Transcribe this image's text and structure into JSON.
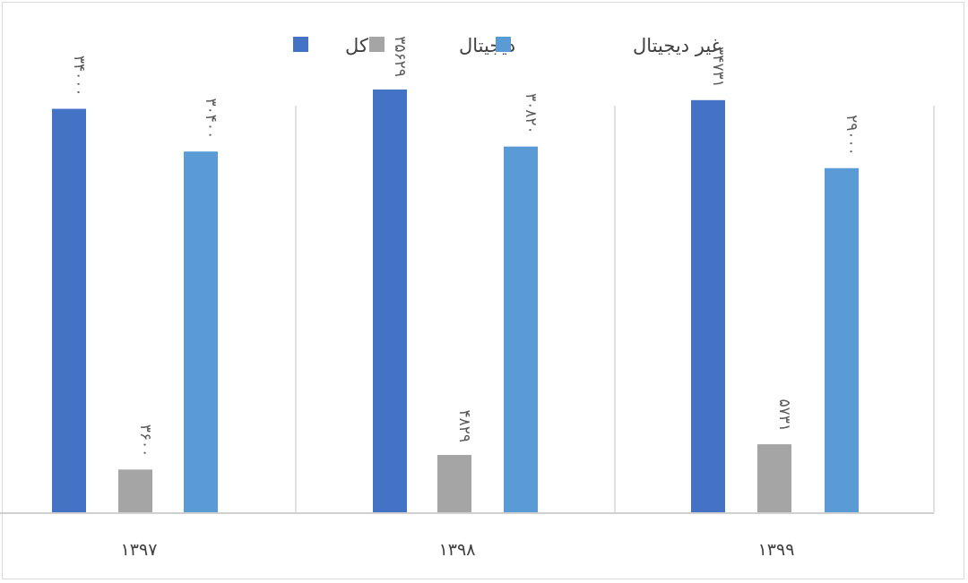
{
  "chart_data": {
    "type": "bar",
    "title": "",
    "xlabel": "",
    "ylabel": "",
    "categories": [
      "۱۳۹۷",
      "۱۳۹۸",
      "۱۳۹۹"
    ],
    "series": [
      {
        "name": "کل",
        "values": [
          34000,
          35629,
          34731
        ],
        "labels": [
          "۳۴۰۰۰",
          "۳۵۶۲۹",
          "۳۴۷۳۱"
        ],
        "color": "#4472c4"
      },
      {
        "name": "دیجیتال",
        "values": [
          3600,
          4829,
          5731
        ],
        "labels": [
          "۳۶۰۰",
          "۴۸۲۹",
          "۵۷۳۱"
        ],
        "color": "#a5a5a5"
      },
      {
        "name": "غیر دیجیتال",
        "values": [
          30400,
          30820,
          29000
        ],
        "labels": [
          "۳۰۴۰۰",
          "۳۰۸۲۰",
          "۲۹۰۰۰"
        ],
        "color": "#5b9bd5"
      }
    ],
    "ylim": [
      0,
      40000
    ],
    "grid": false,
    "legend": "top-center",
    "label_orientation": "vertical"
  }
}
